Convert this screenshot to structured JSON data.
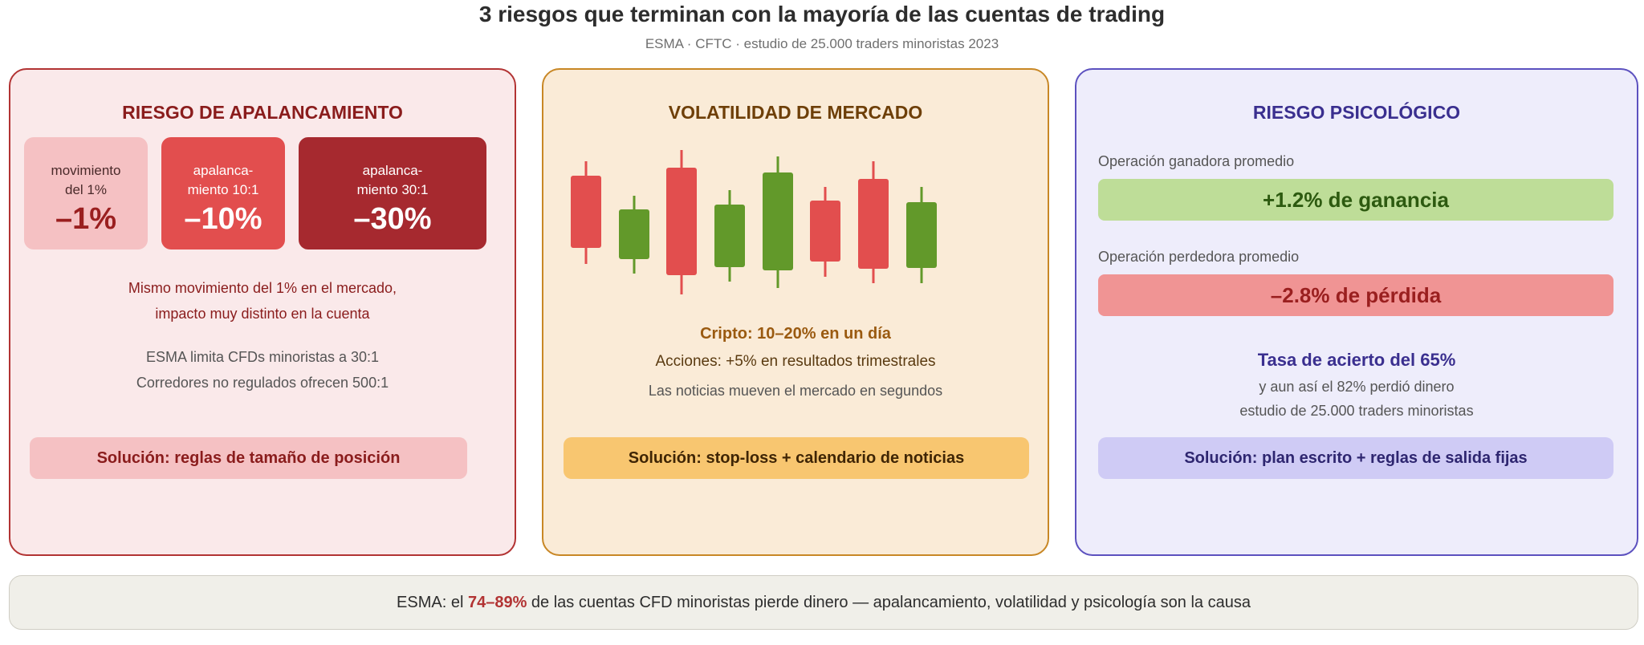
{
  "title": "3 riesgos que terminan con la mayoría de las cuentas de trading",
  "subtitle": "ESMA · CFTC · estudio de 25.000 traders minoristas 2023",
  "colors": {
    "red_dark": "#a6292f",
    "red": "#e24e4e",
    "green": "#62992a",
    "amber": "#c88725",
    "purple": "#5c51bf"
  },
  "leverage": {
    "title": "RIESGO DE APALANCAMIENTO",
    "boxes": [
      {
        "label_lines": [
          "movimiento",
          "del 1%"
        ],
        "value": "–1%"
      },
      {
        "label_lines": [
          "apalanca-",
          "miento 10:1"
        ],
        "value": "–10%"
      },
      {
        "label_lines": [
          "apalanca-",
          "miento 30:1"
        ],
        "value": "–30%"
      }
    ],
    "impact_line1": "Mismo movimiento del 1% en el mercado,",
    "impact_line2": "impacto muy distinto en la cuenta",
    "note_line1": "ESMA limita CFDs minoristas a 30:1",
    "note_line2": "Corredores no regulados ofrecen 500:1",
    "solution": "Solución: reglas de tamaño de posición"
  },
  "volatility": {
    "title": "VOLATILIDAD DE MERCADO",
    "candles": [
      "bearish",
      "bullish",
      "bearish",
      "bullish",
      "bullish",
      "bearish",
      "bearish",
      "bullish"
    ],
    "stat_crypto": "Cripto: 10–20% en un día",
    "stat_stocks": "Acciones: +5% en resultados trimestrales",
    "stat_news": "Las noticias mueven el mercado en segundos",
    "solution": "Solución: stop-loss + calendario de noticias"
  },
  "psychology": {
    "title": "RIESGO PSICOLÓGICO",
    "win_label": "Operación ganadora promedio",
    "win_value": "+1.2% de ganancia",
    "loss_label": "Operación perdedora promedio",
    "loss_value": "–2.8% de pérdida",
    "hit_rate": "Tasa de acierto del 65%",
    "lost_line": "y aun así el 82% perdió dinero",
    "study_line": "estudio de 25.000 traders minoristas",
    "solution": "Solución: plan escrito + reglas de salida fijas"
  },
  "footer": {
    "prefix": "ESMA: el ",
    "highlight": "74–89%",
    "suffix": " de las cuentas CFD minoristas pierde dinero — apalancamiento, volatilidad y psicología son la causa"
  }
}
